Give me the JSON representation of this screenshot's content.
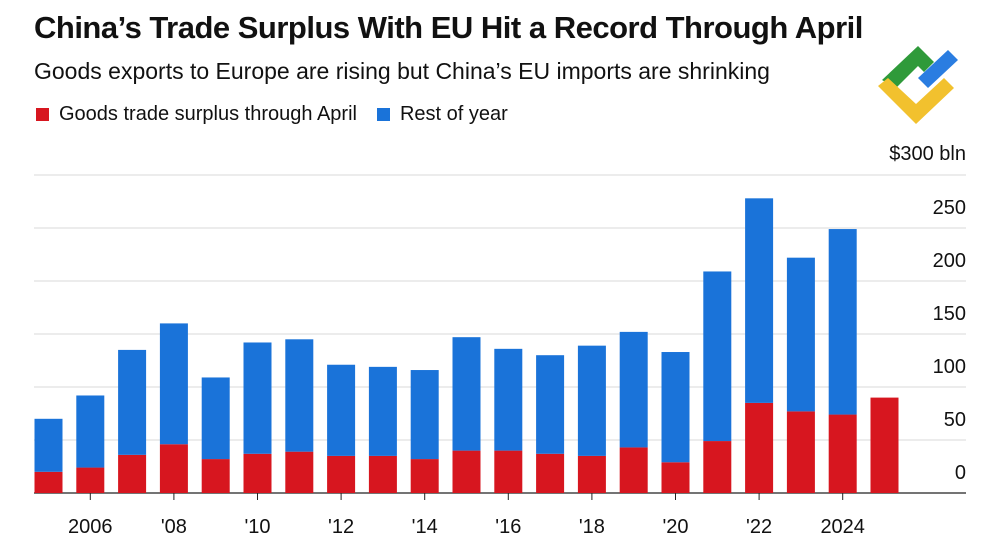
{
  "header": {
    "title": "China’s Trade Surplus With EU Hit a Record Through April",
    "subtitle": "Goods exports to Europe are rising but China’s EU imports are shrinking"
  },
  "legend": {
    "items": [
      {
        "label": "Goods trade surplus through April",
        "color": "#d7161f"
      },
      {
        "label": "Rest of year",
        "color": "#1a73d9"
      }
    ]
  },
  "logo": {
    "icon": "litefinance-logo-icon",
    "colors": [
      "#2f9a3a",
      "#2a7de1",
      "#f2c12e"
    ]
  },
  "chart_data": {
    "type": "bar",
    "stacked": true,
    "unit": "$300 bln",
    "categories": [
      "2005",
      "2006",
      "2007",
      "2008",
      "2009",
      "2010",
      "2011",
      "2012",
      "2013",
      "2014",
      "2015",
      "2016",
      "2017",
      "2018",
      "2019",
      "2020",
      "2021",
      "2022",
      "2023",
      "2024",
      "2025"
    ],
    "x_tick_labels": [
      "2006",
      "'08",
      "'10",
      "'12",
      "'14",
      "'16",
      "'18",
      "'20",
      "'22",
      "2024"
    ],
    "x_tick_years": [
      2006,
      2008,
      2010,
      2012,
      2014,
      2016,
      2018,
      2020,
      2022,
      2024
    ],
    "series": [
      {
        "name": "Goods trade surplus through April",
        "color": "#d7161f",
        "values": [
          20,
          24,
          36,
          46,
          32,
          37,
          39,
          35,
          35,
          32,
          40,
          40,
          37,
          35,
          43,
          29,
          49,
          85,
          77,
          74,
          90
        ]
      },
      {
        "name": "Rest of year",
        "color": "#1a73d9",
        "values": [
          50,
          68,
          99,
          114,
          77,
          105,
          106,
          86,
          84,
          84,
          107,
          96,
          93,
          104,
          109,
          104,
          160,
          193,
          145,
          175,
          0
        ]
      }
    ],
    "y_ticks": [
      0,
      50,
      100,
      150,
      200,
      250
    ],
    "y_top_label": "$300 bln",
    "ylim": [
      0,
      300
    ],
    "grid": true,
    "axis_side": "right"
  }
}
